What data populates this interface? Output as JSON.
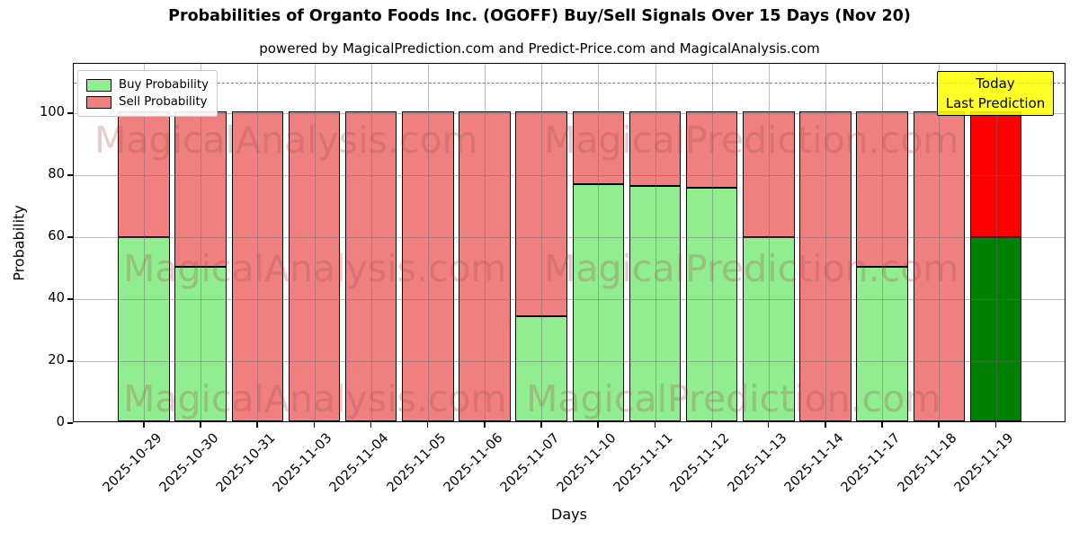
{
  "title": "Probabilities of Organto Foods Inc. (OGOFF) Buy/Sell Signals Over 15 Days (Nov 20)",
  "subtitle": "powered by MagicalPrediction.com and Predict-Price.com and MagicalAnalysis.com",
  "axes": {
    "xlabel": "Days",
    "ylabel": "Probability"
  },
  "legend": {
    "items": [
      {
        "label": "Buy Probability",
        "color": "#90EE90"
      },
      {
        "label": "Sell Probability",
        "color": "#F08080"
      }
    ]
  },
  "annotation": {
    "lines": [
      "Today",
      "Last Prediction"
    ],
    "bg_color": "#FFFF00"
  },
  "watermarks": {
    "left": "MagicalAnalysis.com",
    "right": "MagicalPrediction.com"
  },
  "chart_data": {
    "type": "bar",
    "stacked": true,
    "title": "Probabilities of Organto Foods Inc. (OGOFF) Buy/Sell Signals Over 15 Days (Nov 20)",
    "xlabel": "Days",
    "ylabel": "Probability",
    "categories": [
      "2025-10-29",
      "2025-10-30",
      "2025-10-31",
      "2025-11-03",
      "2025-11-04",
      "2025-11-05",
      "2025-11-06",
      "2025-11-07",
      "2025-11-10",
      "2025-11-11",
      "2025-11-12",
      "2025-11-13",
      "2025-11-14",
      "2025-11-17",
      "2025-11-18",
      "2025-11-19"
    ],
    "series": [
      {
        "name": "Buy Probability",
        "color": "#90EE90",
        "today_color": "#008000",
        "values": [
          59.5,
          50,
          0,
          0,
          0,
          0,
          0,
          34,
          76.5,
          76,
          75.5,
          59.5,
          0,
          50,
          0,
          59.5
        ]
      },
      {
        "name": "Sell Probability",
        "color": "#F08080",
        "today_color": "#FF0000",
        "values": [
          40.5,
          50,
          100,
          100,
          100,
          100,
          100,
          66,
          23.5,
          24,
          24.5,
          40.5,
          100,
          50,
          100,
          40.5
        ]
      }
    ],
    "yticks": [
      0,
      20,
      40,
      60,
      80,
      100
    ],
    "ylim": [
      0,
      116
    ],
    "dashed_line_y": 110,
    "grid": true,
    "legend_position": "upper left",
    "today_index": 15
  }
}
